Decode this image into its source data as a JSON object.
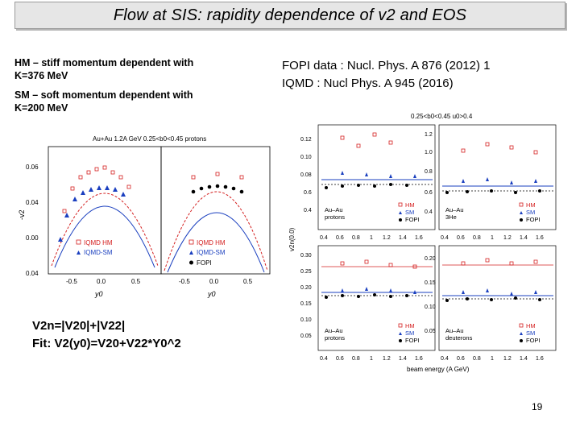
{
  "slide": {
    "title": "Flow at  SIS:   rapidity dependence of v2 and EOS",
    "left_notes": [
      "HM – stiff momentum dependent with",
      "K=376 MeV",
      "SM – soft momentum dependent with",
      "K=200 MeV"
    ],
    "references": [
      "FOPI data :  Nucl. Phys. A 876 (2012) 1",
      "IQMD :  Nucl Phys. A 945 (2016)"
    ],
    "fit_lines": [
      "V2n=|V20|+|V22|",
      "Fit: V2(y0)=V20+V22*Y0^2"
    ],
    "page_number": "19"
  },
  "left_figure": {
    "header": "Au+Au 1.2A GeV  0.25<b0<0.45  protons",
    "ylabel": "-v2",
    "yticks": [
      "0.06",
      "0.04",
      "0.00",
      "0.04"
    ],
    "xticks_left": [
      "-0.5",
      "0.0",
      "0.5"
    ],
    "xticks_right": [
      "-0.5",
      "0.0",
      "0.5"
    ],
    "xlabel": "y0",
    "legend_left": [
      "IQMD HM",
      "IQMD-SM"
    ],
    "legend_right": [
      "IQMD HM",
      "IQMD-SM",
      "FOPI"
    ]
  },
  "right_figure": {
    "header": "0.25<b0<0.45   u0>0.4",
    "ylabel": "v2n(0.0)",
    "xlabel": "beam energy (A GeV)",
    "xticks": [
      "0.4",
      "0.6",
      "0.8",
      "1",
      "1.2",
      "1.4",
      "1.6"
    ],
    "panels": [
      {
        "yticks": [
          "0.12",
          "0.10",
          "0.08",
          "0.6",
          "0.4"
        ],
        "system": [
          "Au–Au",
          "protons"
        ],
        "legend": [
          "HM",
          "SM",
          "FOPI"
        ]
      },
      {
        "yticks": [
          "1.2",
          "1.0",
          "0.8",
          "0.6",
          "0.4"
        ],
        "system": [
          "Au–Au",
          "3He"
        ],
        "legend": [
          "HM",
          "SM",
          "FOPI"
        ]
      },
      {
        "yticks": [
          "0.30",
          "0.25",
          "0.20",
          "0.15",
          "0.10",
          "0.05"
        ],
        "system": [
          "Au–Au",
          "protons"
        ],
        "legend": [
          "HM",
          "SM",
          "FOPI"
        ]
      },
      {
        "yticks": [
          "0.20",
          "0.15",
          "0.10",
          "0.05"
        ],
        "system": [
          "Au–Au",
          "deuterons"
        ],
        "legend": [
          "HM",
          "SM",
          "FOPI"
        ]
      }
    ]
  },
  "colors": {
    "hm": "#d42020",
    "sm": "#1a3fbf",
    "fopi": "#000000",
    "title_bg": "#e6e6e6"
  }
}
